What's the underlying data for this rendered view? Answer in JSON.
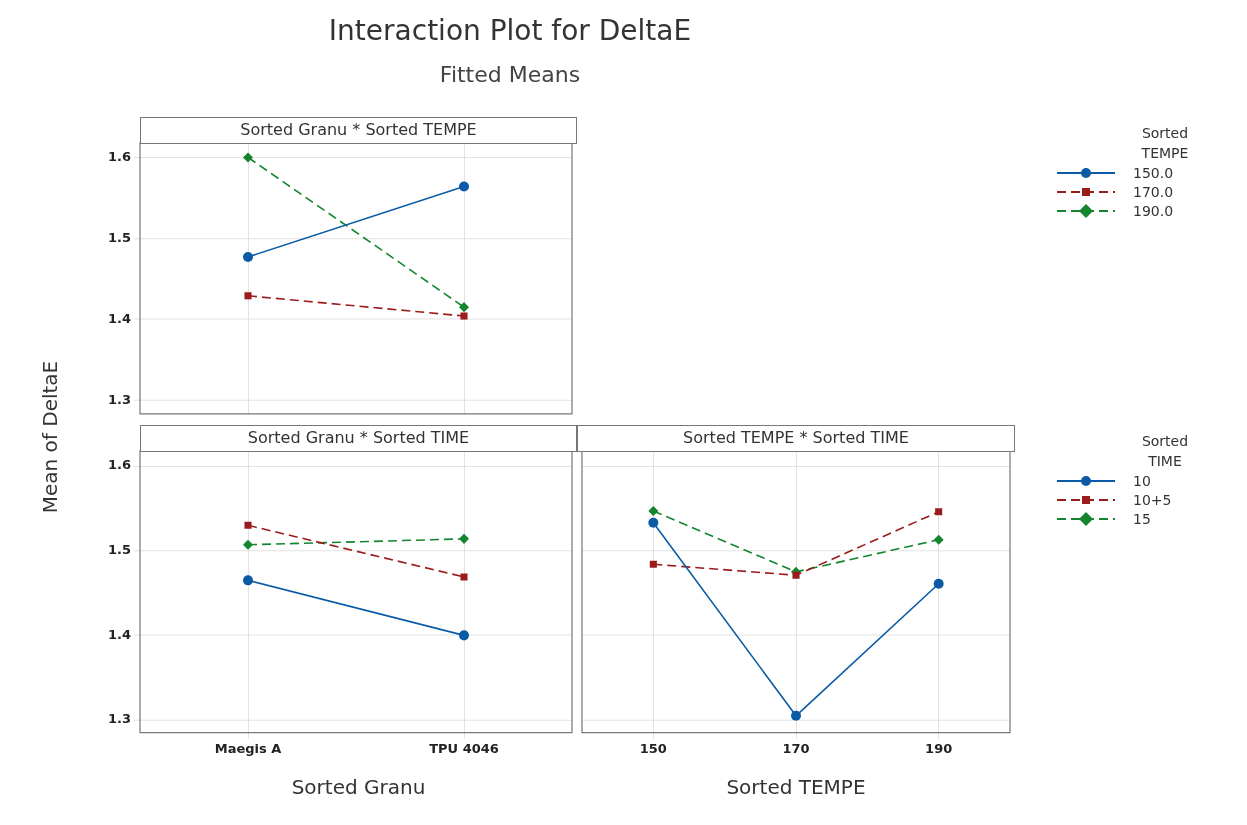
{
  "chart_data": [
    {
      "type": "line",
      "title": "Interaction Plot for DeltaE",
      "subtitle": "Fitted Means",
      "annotations": [
        "Sorted Granu * Sorted TEMPE"
      ],
      "ylabel": "Mean of DeltaE",
      "legend_title": "Sorted TEMPE",
      "legend": "right",
      "grid": true,
      "tick_labels": "y",
      "categories": [
        null,
        null
      ],
      "ylim": [
        1.283,
        1.618
      ],
      "yticks": [
        1.3,
        1.4,
        1.5,
        1.6
      ],
      "series": [
        {
          "name": "150.0",
          "color": "#0b5aa6",
          "marker": "circle",
          "line_style": "solid",
          "values": [
            1.477,
            1.564
          ]
        },
        {
          "name": "170.0",
          "color": "#9b1c1c",
          "marker": "square",
          "line_style": "dashed",
          "values": [
            1.429,
            1.404
          ]
        },
        {
          "name": "190.0",
          "color": "#14852e",
          "marker": "diamond",
          "line_style": "dashed",
          "values": [
            1.6,
            1.415
          ]
        }
      ]
    },
    {
      "type": "line",
      "title": "Sorted Granu * Sorted TIME",
      "xlabel": "Sorted Granu",
      "grid": true,
      "categories": [
        "Maegis A",
        "TPU 4046"
      ],
      "ylim": [
        1.285,
        1.618
      ],
      "yticks": [
        1.3,
        1.4,
        1.5,
        1.6
      ],
      "series": [
        {
          "color": "#0b5aa6",
          "marker": "circle",
          "line_style": "solid",
          "values": [
            1.465,
            1.4
          ]
        },
        {
          "color": "#9b1c1c",
          "marker": "square",
          "line_style": "dashed",
          "values": [
            1.53,
            1.469
          ]
        },
        {
          "color": "#14852e",
          "marker": "diamond",
          "line_style": "dashed",
          "values": [
            1.507,
            1.514
          ]
        }
      ]
    },
    {
      "type": "line",
      "title": "Sorted TEMPE * Sorted TIME",
      "xlabel": "Sorted TEMPE",
      "legend_title": "Sorted TIME",
      "legend": "right",
      "grid": true,
      "tick_labels": "x",
      "categories": [
        "150",
        "170",
        "190"
      ],
      "ylim": [
        1.285,
        1.618
      ],
      "yticks": [
        1.3,
        1.4,
        1.5,
        1.6
      ],
      "series": [
        {
          "name": "10",
          "color": "#0b5aa6",
          "marker": "circle",
          "line_style": "solid",
          "values": [
            1.533,
            1.305,
            1.461
          ]
        },
        {
          "name": "10+5",
          "color": "#9b1c1c",
          "marker": "square",
          "line_style": "dashed",
          "values": [
            1.484,
            1.471,
            1.546
          ]
        },
        {
          "name": "15",
          "color": "#14852e",
          "marker": "diamond",
          "line_style": "dashed",
          "values": [
            1.547,
            1.475,
            1.513
          ]
        }
      ]
    }
  ]
}
